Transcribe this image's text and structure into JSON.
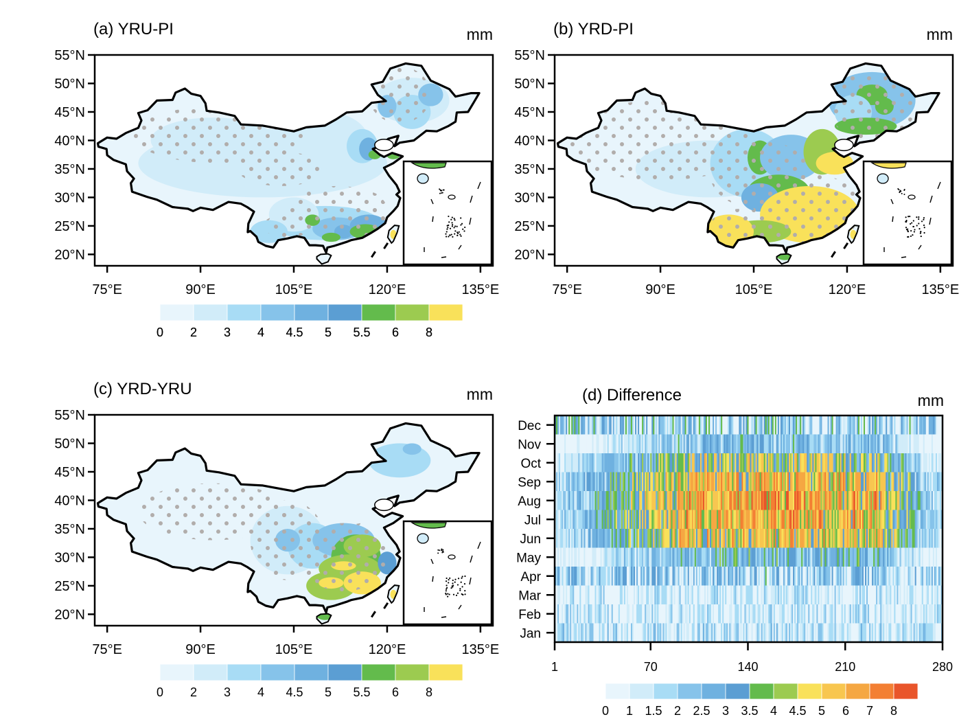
{
  "chart_data": [
    {
      "type": "heatmap",
      "panel": "a",
      "title": "(a) YRU-PI",
      "units": "mm",
      "subtype": "filled contour map with stippling",
      "region": "China",
      "xlabel": "",
      "ylabel": "",
      "xticks": [
        "75°E",
        "90°E",
        "105°E",
        "120°E",
        "135°E"
      ],
      "yticks": [
        "20°N",
        "25°N",
        "30°N",
        "35°N",
        "40°N",
        "45°N",
        "50°N",
        "55°N"
      ],
      "xlim": [
        73,
        137
      ],
      "ylim": [
        18,
        55
      ],
      "colorbar": {
        "labels": [
          "0",
          "2",
          "3",
          "4",
          "4.5",
          "5",
          "5.5",
          "6",
          "8"
        ],
        "colors": [
          "#e8f5fc",
          "#d1ecf9",
          "#a8dcf5",
          "#86c3ea",
          "#6fb1e0",
          "#5b9ed3",
          "#63bb4c",
          "#9ccb50",
          "#f9e15a"
        ]
      },
      "description": "Mostly low values (0-3 mm) across western and northern China; moderate values (4-5.5) in NE China and south; small 5.5-8 patches along south coast and Shandong; Taiwan peak >8"
    },
    {
      "type": "heatmap",
      "panel": "b",
      "title": "(b) YRD-PI",
      "units": "mm",
      "subtype": "filled contour map with stippling",
      "region": "China",
      "xticks": [
        "75°E",
        "90°E",
        "105°E",
        "120°E",
        "135°E"
      ],
      "yticks": [
        "20°N",
        "25°N",
        "30°N",
        "35°N",
        "40°N",
        "45°N",
        "50°N",
        "55°N"
      ],
      "xlim": [
        73,
        137
      ],
      "ylim": [
        18,
        55
      ],
      "colorbar": {
        "labels": [
          "0",
          "2",
          "3",
          "4",
          "4.5",
          "5",
          "5.5",
          "6",
          "8"
        ],
        "colors": [
          "#e8f5fc",
          "#d1ecf9",
          "#a8dcf5",
          "#86c3ea",
          "#6fb1e0",
          "#5b9ed3",
          "#63bb4c",
          "#9ccb50",
          "#f9e15a"
        ]
      },
      "description": "High values (>8 mm) over southern and southeastern China and Yunnan; 5.5-8 over central and NE China; low values in the northwest"
    },
    {
      "type": "heatmap",
      "panel": "c",
      "title": "(c) YRD-YRU",
      "units": "mm",
      "subtype": "filled contour map with stippling",
      "region": "China",
      "xticks": [
        "75°E",
        "90°E",
        "105°E",
        "120°E",
        "135°E"
      ],
      "yticks": [
        "20°N",
        "25°N",
        "30°N",
        "35°N",
        "40°N",
        "45°N",
        "50°N",
        "55°N"
      ],
      "xlim": [
        73,
        137
      ],
      "ylim": [
        18,
        55
      ],
      "colorbar": {
        "labels": [
          "0",
          "2",
          "3",
          "4",
          "4.5",
          "5",
          "5.5",
          "6",
          "8"
        ],
        "colors": [
          "#e8f5fc",
          "#d1ecf9",
          "#a8dcf5",
          "#86c3ea",
          "#6fb1e0",
          "#5b9ed3",
          "#63bb4c",
          "#9ccb50",
          "#f9e15a"
        ]
      },
      "description": "Largest differences (5.5->8 mm) over southeastern China; moderate (3-5) across central China; small in north and west"
    },
    {
      "type": "heatmap",
      "panel": "d",
      "title": "(d) Difference",
      "units": "mm",
      "xlabel": "",
      "ylabel": "",
      "x_ticks": [
        1,
        70,
        140,
        210,
        280
      ],
      "xlim": [
        1,
        280
      ],
      "months": [
        "Jan",
        "Feb",
        "Mar",
        "Apr",
        "May",
        "Jun",
        "Jul",
        "Aug",
        "Sep",
        "Oct",
        "Nov",
        "Dec"
      ],
      "colorbar": {
        "labels": [
          "0",
          "1",
          "1.5",
          "2",
          "2.5",
          "3",
          "3.5",
          "4",
          "4.5",
          "5",
          "6",
          "7",
          "8"
        ],
        "colors": [
          "#e8f5fc",
          "#d1ecf9",
          "#a8dcf5",
          "#86c3ea",
          "#6fb1e0",
          "#5b9ed3",
          "#63bb4c",
          "#9ccb50",
          "#f9e15a",
          "#f8c64f",
          "#f5a742",
          "#f37f33",
          "#e9552a"
        ]
      },
      "month_peak_level": [
        1.6,
        1.4,
        1.4,
        2.2,
        3.4,
        6.2,
        7.0,
        7.3,
        6.6,
        5.2,
        3.0,
        2.4
      ],
      "peak_x_range": [
        90,
        230
      ],
      "peak_center_x": 150,
      "description": "Station (1-280) by month difference; largest values (6->8 mm) in Jun-Sep for stations ~100-200; small values (0-2) Jan-Apr and Nov-Dec"
    }
  ]
}
